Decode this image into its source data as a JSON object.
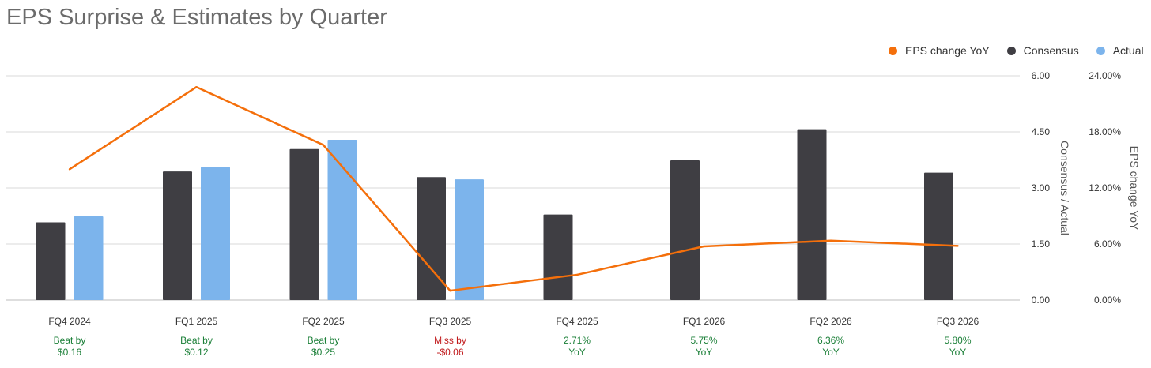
{
  "title": "EPS Surprise & Estimates by Quarter",
  "colors": {
    "consensus": "#3f3e43",
    "actual": "#7cb4ec",
    "eps_change": "#f46f0b",
    "beat": "#1a7f37",
    "miss": "#c0181a",
    "grid": "#d9d9d9"
  },
  "legend": [
    {
      "label": "EPS change YoY",
      "color": "#f46f0b"
    },
    {
      "label": "Consensus",
      "color": "#3f3e43"
    },
    {
      "label": "Actual",
      "color": "#7cb4ec"
    }
  ],
  "chart_data": {
    "type": "bar",
    "categories": [
      "FQ4 2024",
      "FQ1 2025",
      "FQ2 2025",
      "FQ3 2025",
      "FQ4 2025",
      "FQ1 2026",
      "FQ2 2026",
      "FQ3 2026"
    ],
    "series": [
      {
        "name": "Consensus",
        "type": "bar",
        "axis": "left",
        "values": [
          2.08,
          3.44,
          4.04,
          3.29,
          2.29,
          3.74,
          4.57,
          3.41
        ]
      },
      {
        "name": "Actual",
        "type": "bar",
        "axis": "left",
        "values": [
          2.24,
          3.56,
          4.29,
          3.23,
          null,
          null,
          null,
          null
        ]
      },
      {
        "name": "EPS change YoY",
        "type": "line",
        "axis": "right",
        "values": [
          14.0,
          22.8,
          16.6,
          1.0,
          2.71,
          5.75,
          6.36,
          5.8
        ]
      }
    ],
    "y_left": {
      "label": "Consensus / Actual",
      "ylim": [
        0,
        6
      ],
      "ticks": [
        "0.00",
        "1.50",
        "3.00",
        "4.50",
        "6.00"
      ]
    },
    "y_right": {
      "label": "EPS change YoY",
      "ylim": [
        0,
        24
      ],
      "ticks": [
        "0.00%",
        "6.00%",
        "12.00%",
        "18.00%",
        "24.00%"
      ]
    },
    "notes": [
      {
        "line1": "Beat by",
        "line2": "$0.16",
        "status": "beat"
      },
      {
        "line1": "Beat by",
        "line2": "$0.12",
        "status": "beat"
      },
      {
        "line1": "Beat by",
        "line2": "$0.25",
        "status": "beat"
      },
      {
        "line1": "Miss by",
        "line2": "-$0.06",
        "status": "miss"
      },
      {
        "line1": "2.71%",
        "line2": "YoY",
        "status": "beat"
      },
      {
        "line1": "5.75%",
        "line2": "YoY",
        "status": "beat"
      },
      {
        "line1": "6.36%",
        "line2": "YoY",
        "status": "beat"
      },
      {
        "line1": "5.80%",
        "line2": "YoY",
        "status": "beat"
      }
    ],
    "grid": true,
    "legend_position": "top-right"
  }
}
